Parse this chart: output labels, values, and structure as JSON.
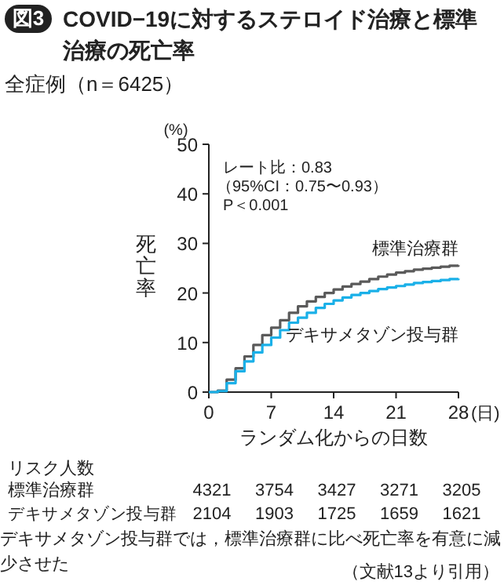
{
  "chart_data": {
    "type": "step",
    "title": "COVID−19に対するステロイド治療と標準治療の死亡率",
    "subtitle": "全症例（n＝6425）",
    "xlabel": "ランダム化からの日数",
    "ylabel": "死亡率",
    "xlim": [
      0,
      28
    ],
    "ylim": [
      0,
      50
    ],
    "xticks": [
      0,
      7,
      14,
      21,
      28
    ],
    "yticks": [
      0,
      10,
      20,
      30,
      40,
      50
    ],
    "x": [
      0,
      1,
      2,
      3,
      4,
      5,
      6,
      7,
      8,
      9,
      10,
      11,
      12,
      13,
      14,
      15,
      16,
      17,
      18,
      19,
      20,
      21,
      22,
      23,
      24,
      25,
      26,
      27,
      28
    ],
    "series": [
      {
        "name": "標準治療群",
        "color": "#5a5a5a",
        "values": [
          0,
          0.3,
          2.5,
          4.8,
          7.2,
          9.5,
          11.5,
          13,
          14.5,
          16,
          17.3,
          18.3,
          19.2,
          20,
          20.7,
          21.3,
          21.8,
          22.3,
          22.8,
          23.3,
          23.7,
          24.1,
          24.4,
          24.7,
          24.9,
          25.1,
          25.3,
          25.5,
          25.6
        ]
      },
      {
        "name": "デキサメタゾン投与群",
        "color": "#1ab0e8",
        "values": [
          0,
          0.2,
          1.8,
          4.2,
          6.2,
          8,
          9.5,
          11,
          12.5,
          14,
          15,
          16,
          17,
          17.8,
          18.5,
          19.1,
          19.6,
          20,
          20.4,
          20.8,
          21.1,
          21.4,
          21.7,
          22,
          22.2,
          22.4,
          22.6,
          22.8,
          22.9
        ]
      }
    ],
    "annotations": [
      "図3",
      "(%)",
      "(日)",
      "レート比：0.83",
      "（95%CI：0.75〜0.93）",
      "P＜0.001",
      "リスク人数",
      "標準治療群",
      "4321",
      "3754",
      "3427",
      "3271",
      "3205",
      "デキサメタゾン投与群",
      "2104",
      "1903",
      "1725",
      "1659",
      "1621",
      "デキサメタゾン投与群では，標準治療群に比べ死亡率を有意に減少させた",
      "（文献13より引用）"
    ],
    "grid": false
  }
}
